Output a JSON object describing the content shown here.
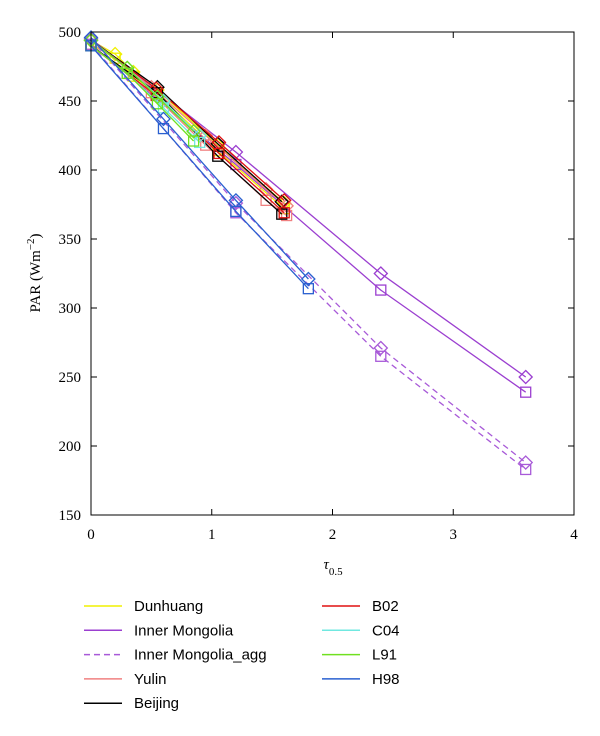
{
  "chart_data": {
    "type": "line",
    "title": "",
    "ylabel": "PAR (Wm",
    "ylabel_sup": "−2",
    "ylabel_close": ")",
    "xlabel": "τ",
    "xlabel_sub": "0.5",
    "xlim": [
      0,
      4
    ],
    "ylim": [
      150,
      500
    ],
    "xticks": [
      0,
      1,
      2,
      3,
      4
    ],
    "yticks": [
      150,
      200,
      250,
      300,
      350,
      400,
      450,
      500
    ],
    "grid": false,
    "legend_position": "bottom",
    "series": [
      {
        "name": "Dunhuang",
        "color": "#f0f000",
        "dash": false,
        "lines": [
          {
            "marker": "diamond",
            "points": [
              [
                0,
                494
              ],
              [
                0.2,
                484
              ],
              [
                0.35,
                471
              ],
              [
                0.55,
                458
              ],
              [
                1.05,
                418
              ],
              [
                1.6,
                376
              ]
            ]
          },
          {
            "marker": "square",
            "points": [
              [
                0,
                491
              ],
              [
                0.2,
                481
              ],
              [
                0.35,
                468
              ],
              [
                0.55,
                455
              ],
              [
                1.05,
                414
              ],
              [
                1.6,
                372
              ]
            ]
          }
        ]
      },
      {
        "name": "Inner Mongolia",
        "color": "#9b3fd0",
        "dash": false,
        "lines": [
          {
            "marker": "diamond",
            "points": [
              [
                0,
                495
              ],
              [
                1.2,
                413
              ],
              [
                2.4,
                325
              ],
              [
                3.6,
                250
              ]
            ]
          },
          {
            "marker": "square",
            "points": [
              [
                0,
                491
              ],
              [
                1.2,
                404
              ],
              [
                2.4,
                313
              ],
              [
                3.6,
                239
              ]
            ]
          }
        ]
      },
      {
        "name": "Inner Mongolia_agg",
        "color": "#a85ad8",
        "dash": true,
        "lines": [
          {
            "marker": "diamond",
            "points": [
              [
                0,
                495
              ],
              [
                1.2,
                376
              ],
              [
                2.4,
                271
              ],
              [
                3.6,
                188
              ]
            ]
          },
          {
            "marker": "square",
            "points": [
              [
                0,
                491
              ],
              [
                1.2,
                369
              ],
              [
                2.4,
                265
              ],
              [
                3.6,
                183
              ]
            ]
          }
        ]
      },
      {
        "name": "Yulin",
        "color": "#f08080",
        "dash": false,
        "lines": [
          {
            "marker": "diamond",
            "points": [
              [
                0,
                494
              ],
              [
                0.5,
                460
              ],
              [
                0.95,
                425
              ],
              [
                1.45,
                386
              ],
              [
                1.62,
                374
              ]
            ]
          },
          {
            "marker": "square",
            "points": [
              [
                0,
                490
              ],
              [
                0.5,
                456
              ],
              [
                0.95,
                418
              ],
              [
                1.45,
                378
              ],
              [
                1.62,
                367
              ]
            ]
          }
        ]
      },
      {
        "name": "Beijing",
        "color": "#000000",
        "dash": false,
        "lines": [
          {
            "marker": "diamond",
            "points": [
              [
                0,
                494
              ],
              [
                0.55,
                460
              ],
              [
                1.05,
                419
              ],
              [
                1.58,
                377
              ]
            ]
          },
          {
            "marker": "square",
            "points": [
              [
                0,
                490
              ],
              [
                0.55,
                456
              ],
              [
                1.05,
                410
              ],
              [
                1.58,
                368
              ]
            ]
          }
        ]
      },
      {
        "name": "B02",
        "color": "#e01010",
        "dash": false,
        "lines": [
          {
            "marker": "diamond",
            "points": [
              [
                0,
                494
              ],
              [
                0.54,
                459
              ],
              [
                1.06,
                420
              ],
              [
                1.6,
                378
              ]
            ]
          },
          {
            "marker": "square",
            "points": [
              [
                0,
                490
              ],
              [
                0.54,
                454
              ],
              [
                1.06,
                412
              ],
              [
                1.6,
                369
              ]
            ]
          }
        ]
      },
      {
        "name": "C04",
        "color": "#70e8e0",
        "dash": false,
        "lines": [
          {
            "marker": "diamond",
            "points": [
              [
                0,
                494
              ],
              [
                0.3,
                474
              ],
              [
                0.6,
                450
              ],
              [
                0.9,
                425
              ]
            ]
          },
          {
            "marker": "square",
            "points": [
              [
                0,
                490
              ],
              [
                0.3,
                470
              ],
              [
                0.6,
                445
              ],
              [
                0.9,
                420
              ]
            ]
          }
        ]
      },
      {
        "name": "L91",
        "color": "#70e020",
        "dash": false,
        "lines": [
          {
            "marker": "diamond",
            "points": [
              [
                0,
                494
              ],
              [
                0.3,
                474
              ],
              [
                0.55,
                453
              ],
              [
                0.85,
                428
              ]
            ]
          },
          {
            "marker": "square",
            "points": [
              [
                0,
                490
              ],
              [
                0.3,
                470
              ],
              [
                0.55,
                448
              ],
              [
                0.85,
                421
              ]
            ]
          }
        ]
      },
      {
        "name": "H98",
        "color": "#2a60d0",
        "dash": false,
        "lines": [
          {
            "marker": "diamond",
            "points": [
              [
                0,
                496
              ],
              [
                0.6,
                437
              ],
              [
                1.2,
                378
              ],
              [
                1.8,
                321
              ]
            ]
          },
          {
            "marker": "square",
            "points": [
              [
                0,
                490
              ],
              [
                0.6,
                430
              ],
              [
                1.2,
                370
              ],
              [
                1.8,
                314
              ]
            ]
          }
        ]
      }
    ]
  }
}
